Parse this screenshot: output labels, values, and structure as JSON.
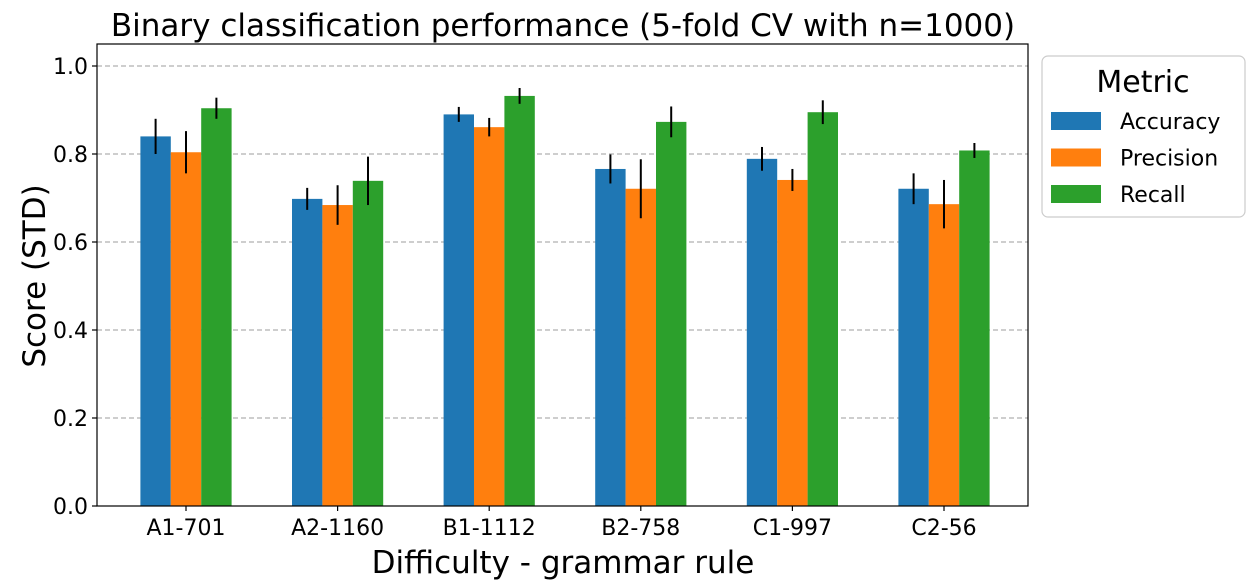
{
  "chart_data": {
    "type": "bar",
    "title": "Binary classification performance (5-fold CV with n=1000)",
    "xlabel": "Difficulty - grammar rule",
    "ylabel": "Score (STD)",
    "ylim": [
      0,
      1.05
    ],
    "yticks": [
      "0.0",
      "0.2",
      "0.4",
      "0.6",
      "0.8",
      "1.0"
    ],
    "grid": "y dashed",
    "legend_title": "Metric",
    "legend_placement": "outside-top-right",
    "categories": [
      "A1-701",
      "A2-1160",
      "B1-1112",
      "B2-758",
      "C1-997",
      "C2-56"
    ],
    "series": [
      {
        "name": "Accuracy",
        "color": "#1f77b4",
        "values": [
          0.84,
          0.698,
          0.89,
          0.766,
          0.789,
          0.721
        ],
        "errors": [
          0.04,
          0.025,
          0.017,
          0.033,
          0.027,
          0.035
        ]
      },
      {
        "name": "Precision",
        "color": "#ff7f0e",
        "values": [
          0.804,
          0.684,
          0.861,
          0.721,
          0.741,
          0.686
        ],
        "errors": [
          0.048,
          0.045,
          0.021,
          0.067,
          0.025,
          0.055
        ]
      },
      {
        "name": "Recall",
        "color": "#2ca02c",
        "values": [
          0.904,
          0.739,
          0.932,
          0.873,
          0.895,
          0.808
        ],
        "errors": [
          0.024,
          0.055,
          0.018,
          0.035,
          0.027,
          0.017
        ]
      }
    ]
  }
}
